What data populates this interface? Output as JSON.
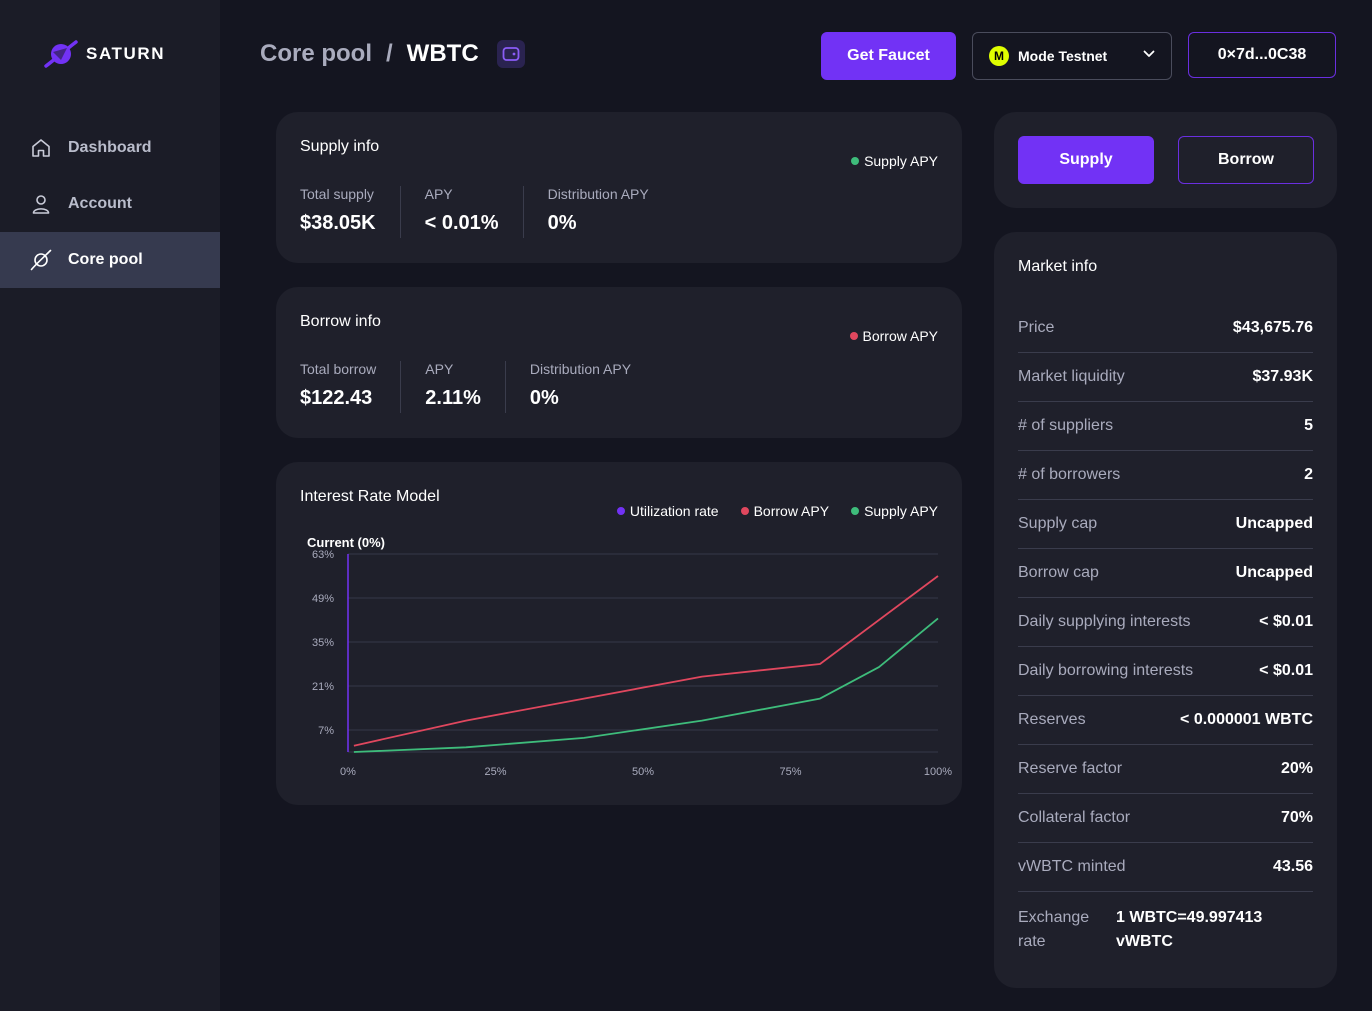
{
  "brand": {
    "name": "SATURN",
    "accent": "#7232f5"
  },
  "sidebar": {
    "items": [
      {
        "label": "Dashboard",
        "icon": "home-icon"
      },
      {
        "label": "Account",
        "icon": "user-icon"
      },
      {
        "label": "Core pool",
        "icon": "planet-icon",
        "active": true
      }
    ]
  },
  "header": {
    "breadcrumb_root": "Core pool",
    "breadcrumb_sep": "/",
    "breadcrumb_current": "WBTC",
    "faucet_label": "Get Faucet",
    "network_badge": "M",
    "network_label": "Mode Testnet",
    "address": "0×7d...0C38"
  },
  "supply_info": {
    "title": "Supply info",
    "legend": "Supply APY",
    "stats": [
      {
        "label": "Total supply",
        "value": "$38.05K"
      },
      {
        "label": "APY",
        "value": "< 0.01%"
      },
      {
        "label": "Distribution APY",
        "value": "0%"
      }
    ]
  },
  "borrow_info": {
    "title": "Borrow info",
    "legend": "Borrow APY",
    "stats": [
      {
        "label": "Total borrow",
        "value": "$122.43"
      },
      {
        "label": "APY",
        "value": "2.11%"
      },
      {
        "label": "Distribution APY",
        "value": "0%"
      }
    ]
  },
  "interest_model": {
    "title": "Interest Rate Model",
    "current_label": "Current (0%)"
  },
  "chart_data": {
    "type": "line",
    "title": "Interest Rate Model",
    "x_tick_labels": [
      "0%",
      "25%",
      "50%",
      "75%",
      "100%"
    ],
    "y_tick_labels": [
      "63%",
      "49%",
      "35%",
      "21%",
      "7%"
    ],
    "xlim": [
      0,
      100
    ],
    "ylim": [
      0,
      63
    ],
    "y_ticks": [
      63,
      49,
      35,
      21,
      7
    ],
    "x_ticks": [
      0,
      25,
      50,
      75,
      100
    ],
    "current_utilization": 0,
    "legend": [
      "Utilization rate",
      "Borrow APY",
      "Supply APY"
    ],
    "colors": {
      "Utilization rate": "#7232f5",
      "Borrow APY": "#e0475e",
      "Supply APY": "#3ebc7b"
    },
    "series": [
      {
        "name": "Borrow APY",
        "x": [
          1,
          20,
          40,
          60,
          80,
          100
        ],
        "y": [
          2,
          10,
          17,
          24,
          28,
          56
        ]
      },
      {
        "name": "Supply APY",
        "x": [
          1,
          20,
          40,
          60,
          80,
          90,
          100
        ],
        "y": [
          0,
          1.5,
          4.5,
          10,
          17,
          27,
          42.5
        ]
      }
    ]
  },
  "actions": {
    "supply_label": "Supply",
    "borrow_label": "Borrow"
  },
  "market_info": {
    "title": "Market info",
    "rows": [
      {
        "k": "Price",
        "v": "$43,675.76"
      },
      {
        "k": "Market liquidity",
        "v": "$37.93K"
      },
      {
        "k": "# of suppliers",
        "v": "5"
      },
      {
        "k": "# of borrowers",
        "v": "2"
      },
      {
        "k": "Supply cap",
        "v": "Uncapped"
      },
      {
        "k": "Borrow cap",
        "v": "Uncapped"
      },
      {
        "k": "Daily supplying interests",
        "v": "< $0.01"
      },
      {
        "k": "Daily borrowing interests",
        "v": "< $0.01"
      },
      {
        "k": "Reserves",
        "v": "< 0.000001 WBTC"
      },
      {
        "k": "Reserve factor",
        "v": "20%"
      },
      {
        "k": "Collateral factor",
        "v": "70%"
      },
      {
        "k": "vWBTC minted",
        "v": "43.56"
      }
    ],
    "exchange_rate_label": "Exchange rate",
    "exchange_rate_value": "1 WBTC=49.997413 vWBTC"
  }
}
